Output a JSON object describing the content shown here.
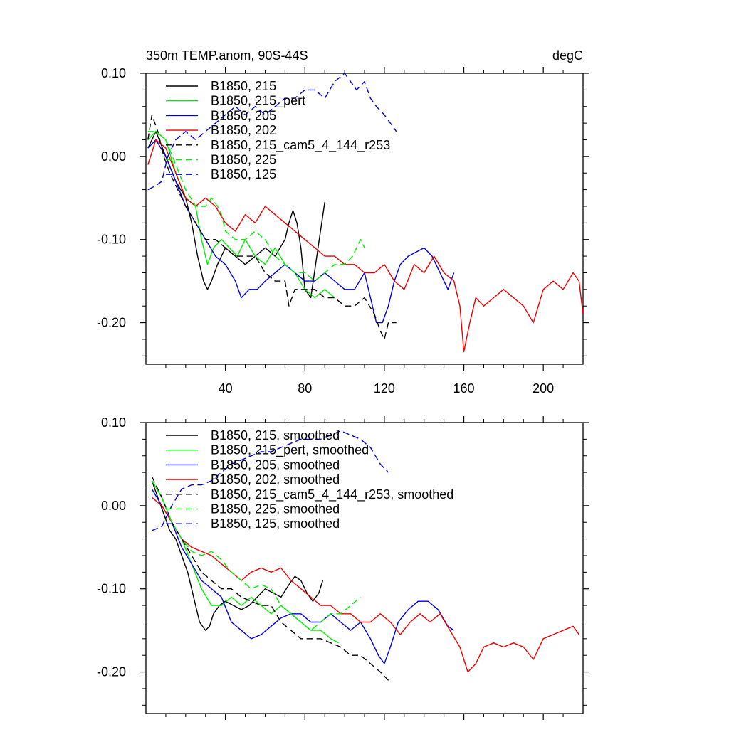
{
  "title_left": "350m TEMP.anom, 90S-44S",
  "title_right": "degC",
  "colors": {
    "black": "#000000",
    "green": "#00ee00",
    "blue": "#0000dd",
    "red": "#ee0000"
  },
  "chart_data": [
    {
      "type": "line",
      "name": "raw",
      "xlim": [
        0,
        220
      ],
      "ylim": [
        -0.25,
        0.1
      ],
      "x_ticks": [
        40,
        80,
        120,
        160,
        200
      ],
      "x_tick_labels": [
        "40",
        "80",
        "120",
        "160",
        "200"
      ],
      "y_ticks": [
        0.1,
        0.0,
        -0.1,
        -0.2
      ],
      "y_tick_labels": [
        "0.10",
        "0.00",
        "-0.10",
        "-0.20"
      ],
      "series": [
        {
          "name": "B1850, 215",
          "color": "#000000",
          "dash": "solid",
          "x": [
            1,
            5,
            10,
            15,
            20,
            23,
            26,
            29,
            31,
            33,
            36,
            40,
            45,
            50,
            55,
            60,
            65,
            70,
            72,
            74,
            76,
            78,
            80,
            83,
            86,
            90
          ],
          "y": [
            0.01,
            0.03,
            0.0,
            -0.03,
            -0.05,
            -0.08,
            -0.12,
            -0.15,
            -0.16,
            -0.15,
            -0.13,
            -0.11,
            -0.12,
            -0.13,
            -0.12,
            -0.11,
            -0.12,
            -0.1,
            -0.08,
            -0.065,
            -0.08,
            -0.11,
            -0.16,
            -0.17,
            -0.12,
            -0.055
          ]
        },
        {
          "name": "B1850, 215_pert",
          "color": "#00ee00",
          "dash": "solid",
          "x": [
            1,
            5,
            10,
            15,
            20,
            25,
            28,
            31,
            34,
            38,
            42,
            46,
            50,
            55,
            60,
            65,
            70,
            75,
            80,
            85,
            90,
            95
          ],
          "y": [
            0.02,
            0.03,
            0.02,
            -0.02,
            -0.05,
            -0.06,
            -0.1,
            -0.13,
            -0.11,
            -0.1,
            -0.11,
            -0.12,
            -0.1,
            -0.12,
            -0.13,
            -0.11,
            -0.13,
            -0.14,
            -0.16,
            -0.17,
            -0.16,
            -0.17
          ]
        },
        {
          "name": "B1850, 205",
          "color": "#0000dd",
          "dash": "solid",
          "x": [
            1,
            5,
            10,
            15,
            20,
            25,
            30,
            35,
            40,
            45,
            48,
            52,
            56,
            60,
            65,
            70,
            75,
            80,
            85,
            90,
            95,
            100,
            105,
            110,
            113,
            116,
            119,
            122,
            125,
            128,
            132,
            136,
            140,
            144,
            148,
            152,
            155
          ],
          "y": [
            0.01,
            0.02,
            0.0,
            -0.03,
            -0.06,
            -0.08,
            -0.1,
            -0.12,
            -0.13,
            -0.15,
            -0.17,
            -0.16,
            -0.16,
            -0.15,
            -0.14,
            -0.13,
            -0.14,
            -0.15,
            -0.15,
            -0.14,
            -0.15,
            -0.16,
            -0.16,
            -0.14,
            -0.17,
            -0.2,
            -0.2,
            -0.18,
            -0.15,
            -0.13,
            -0.12,
            -0.115,
            -0.11,
            -0.12,
            -0.14,
            -0.16,
            -0.14
          ]
        },
        {
          "name": "B1850, 202",
          "color": "#ee0000",
          "dash": "solid",
          "x": [
            1,
            5,
            10,
            15,
            20,
            25,
            30,
            35,
            40,
            45,
            50,
            55,
            60,
            65,
            70,
            75,
            80,
            85,
            90,
            95,
            100,
            105,
            110,
            115,
            120,
            125,
            130,
            135,
            140,
            145,
            150,
            155,
            158,
            160,
            163,
            166,
            170,
            175,
            180,
            185,
            190,
            195,
            200,
            205,
            210,
            215,
            218,
            220
          ],
          "y": [
            -0.01,
            0.02,
            0.01,
            -0.02,
            -0.05,
            -0.06,
            -0.05,
            -0.06,
            -0.08,
            -0.09,
            -0.07,
            -0.08,
            -0.06,
            -0.07,
            -0.08,
            -0.09,
            -0.1,
            -0.11,
            -0.12,
            -0.12,
            -0.13,
            -0.13,
            -0.14,
            -0.14,
            -0.13,
            -0.15,
            -0.16,
            -0.13,
            -0.14,
            -0.12,
            -0.14,
            -0.15,
            -0.18,
            -0.235,
            -0.2,
            -0.17,
            -0.18,
            -0.17,
            -0.16,
            -0.17,
            -0.18,
            -0.2,
            -0.16,
            -0.15,
            -0.16,
            -0.14,
            -0.15,
            -0.19
          ]
        },
        {
          "name": "B1850, 215_cam5_4_144_r253",
          "color": "#000000",
          "dash": "dashed",
          "x": [
            1,
            3,
            6,
            9,
            12,
            16,
            20,
            25,
            30,
            35,
            40,
            45,
            50,
            55,
            60,
            65,
            70,
            72,
            75,
            80,
            85,
            90,
            95,
            100,
            105,
            110,
            115,
            118,
            120,
            122,
            124,
            126
          ],
          "y": [
            0.02,
            0.05,
            0.03,
            0.0,
            -0.02,
            -0.04,
            -0.06,
            -0.08,
            -0.1,
            -0.1,
            -0.11,
            -0.12,
            -0.12,
            -0.12,
            -0.14,
            -0.15,
            -0.15,
            -0.18,
            -0.16,
            -0.16,
            -0.16,
            -0.17,
            -0.17,
            -0.18,
            -0.18,
            -0.17,
            -0.19,
            -0.21,
            -0.22,
            -0.2,
            -0.2,
            -0.2
          ]
        },
        {
          "name": "B1850, 225",
          "color": "#00ee00",
          "dash": "dashed",
          "x": [
            1,
            5,
            10,
            15,
            20,
            25,
            30,
            33,
            36,
            38,
            40,
            45,
            50,
            55,
            60,
            65,
            70,
            75,
            80,
            85,
            90,
            95,
            100,
            104,
            108,
            110
          ],
          "y": [
            0.03,
            0.03,
            0.02,
            -0.01,
            -0.04,
            -0.06,
            -0.06,
            -0.05,
            -0.06,
            -0.07,
            -0.09,
            -0.1,
            -0.1,
            -0.09,
            -0.1,
            -0.12,
            -0.13,
            -0.14,
            -0.14,
            -0.15,
            -0.14,
            -0.13,
            -0.13,
            -0.12,
            -0.1,
            -0.11
          ]
        },
        {
          "name": "B1850, 125",
          "color": "#0000dd",
          "dash": "dashed",
          "x": [
            1,
            5,
            8,
            11,
            15,
            20,
            25,
            30,
            35,
            40,
            45,
            50,
            55,
            60,
            65,
            70,
            75,
            80,
            85,
            90,
            95,
            100,
            103,
            106,
            110,
            113,
            116,
            120,
            123,
            126
          ],
          "y": [
            -0.04,
            -0.035,
            -0.03,
            0.0,
            0.02,
            0.03,
            0.02,
            0.03,
            0.04,
            0.05,
            0.06,
            0.05,
            0.06,
            0.05,
            0.06,
            0.07,
            0.07,
            0.08,
            0.08,
            0.07,
            0.09,
            0.1,
            0.09,
            0.08,
            0.09,
            0.07,
            0.06,
            0.05,
            0.04,
            0.03
          ]
        }
      ]
    },
    {
      "type": "line",
      "name": "smoothed",
      "xlim": [
        0,
        220
      ],
      "ylim": [
        -0.25,
        0.1
      ],
      "x_ticks": [
        40,
        80,
        120,
        160,
        200
      ],
      "x_tick_labels": [],
      "y_ticks": [
        0.1,
        0.0,
        -0.1,
        -0.2
      ],
      "y_tick_labels": [
        "0.10",
        "0.00",
        "-0.10",
        "-0.20"
      ],
      "series": [
        {
          "name": "B1850, 215, smoothed",
          "color": "#000000",
          "dash": "solid",
          "x": [
            3,
            6,
            9,
            12,
            15,
            18,
            21,
            24,
            27,
            30,
            32,
            34,
            37,
            40,
            44,
            48,
            52,
            56,
            60,
            64,
            68,
            72,
            75,
            78,
            81,
            84,
            87,
            89
          ],
          "y": [
            0.03,
            0.01,
            -0.01,
            -0.03,
            -0.04,
            -0.06,
            -0.08,
            -0.11,
            -0.14,
            -0.15,
            -0.145,
            -0.13,
            -0.12,
            -0.115,
            -0.12,
            -0.125,
            -0.12,
            -0.11,
            -0.1,
            -0.105,
            -0.11,
            -0.095,
            -0.085,
            -0.09,
            -0.105,
            -0.115,
            -0.105,
            -0.09
          ]
        },
        {
          "name": "B1850, 215_pert, smoothed",
          "color": "#00ee00",
          "dash": "solid",
          "x": [
            3,
            8,
            13,
            18,
            23,
            28,
            33,
            38,
            43,
            48,
            53,
            58,
            63,
            68,
            73,
            78,
            83,
            88,
            93,
            97
          ],
          "y": [
            0.03,
            0.01,
            -0.02,
            -0.04,
            -0.07,
            -0.1,
            -0.12,
            -0.12,
            -0.11,
            -0.12,
            -0.11,
            -0.12,
            -0.13,
            -0.12,
            -0.13,
            -0.14,
            -0.15,
            -0.15,
            -0.16,
            -0.165
          ]
        },
        {
          "name": "B1850, 205, smoothed",
          "color": "#0000dd",
          "dash": "solid",
          "x": [
            3,
            8,
            13,
            18,
            23,
            28,
            33,
            38,
            43,
            48,
            53,
            58,
            63,
            68,
            73,
            78,
            83,
            88,
            93,
            98,
            103,
            108,
            113,
            117,
            120,
            123,
            127,
            132,
            137,
            142,
            147,
            152,
            155
          ],
          "y": [
            0.02,
            0.0,
            -0.02,
            -0.05,
            -0.07,
            -0.09,
            -0.1,
            -0.11,
            -0.14,
            -0.15,
            -0.16,
            -0.155,
            -0.145,
            -0.135,
            -0.13,
            -0.13,
            -0.14,
            -0.14,
            -0.13,
            -0.14,
            -0.15,
            -0.14,
            -0.16,
            -0.18,
            -0.19,
            -0.17,
            -0.14,
            -0.125,
            -0.115,
            -0.115,
            -0.125,
            -0.145,
            -0.15
          ]
        },
        {
          "name": "B1850, 202, smoothed",
          "color": "#ee0000",
          "dash": "solid",
          "x": [
            3,
            8,
            13,
            18,
            23,
            28,
            33,
            38,
            43,
            48,
            53,
            58,
            63,
            68,
            73,
            78,
            83,
            88,
            93,
            98,
            103,
            108,
            113,
            118,
            123,
            128,
            133,
            138,
            143,
            148,
            153,
            158,
            162,
            166,
            170,
            175,
            180,
            185,
            190,
            195,
            200,
            205,
            210,
            215,
            218
          ],
          "y": [
            0.01,
            0.0,
            -0.02,
            -0.04,
            -0.05,
            -0.055,
            -0.06,
            -0.07,
            -0.08,
            -0.09,
            -0.08,
            -0.075,
            -0.08,
            -0.075,
            -0.09,
            -0.1,
            -0.11,
            -0.12,
            -0.12,
            -0.13,
            -0.13,
            -0.14,
            -0.14,
            -0.13,
            -0.14,
            -0.155,
            -0.14,
            -0.13,
            -0.14,
            -0.13,
            -0.15,
            -0.17,
            -0.2,
            -0.19,
            -0.17,
            -0.165,
            -0.17,
            -0.165,
            -0.17,
            -0.185,
            -0.16,
            -0.155,
            -0.15,
            -0.145,
            -0.155
          ]
        },
        {
          "name": "B1850, 215_cam5_4_144_r253, smoothed",
          "color": "#000000",
          "dash": "dashed",
          "x": [
            3,
            8,
            13,
            18,
            23,
            28,
            33,
            38,
            43,
            48,
            53,
            58,
            63,
            68,
            73,
            78,
            83,
            88,
            93,
            98,
            103,
            108,
            113,
            118,
            122
          ],
          "y": [
            0.035,
            0.01,
            -0.02,
            -0.04,
            -0.06,
            -0.08,
            -0.09,
            -0.1,
            -0.1,
            -0.11,
            -0.115,
            -0.12,
            -0.12,
            -0.14,
            -0.15,
            -0.16,
            -0.16,
            -0.16,
            -0.165,
            -0.17,
            -0.18,
            -0.18,
            -0.19,
            -0.2,
            -0.21
          ]
        },
        {
          "name": "B1850, 225, smoothed",
          "color": "#00ee00",
          "dash": "dashed",
          "x": [
            3,
            8,
            13,
            18,
            23,
            28,
            33,
            38,
            43,
            48,
            53,
            58,
            63,
            68,
            73,
            78,
            83,
            88,
            93,
            98,
            103,
            108
          ],
          "y": [
            0.03,
            0.01,
            -0.02,
            -0.04,
            -0.055,
            -0.06,
            -0.055,
            -0.065,
            -0.08,
            -0.09,
            -0.1,
            -0.095,
            -0.1,
            -0.12,
            -0.13,
            -0.14,
            -0.15,
            -0.14,
            -0.13,
            -0.13,
            -0.12,
            -0.11
          ]
        },
        {
          "name": "B1850, 125, smoothed",
          "color": "#0000dd",
          "dash": "dashed",
          "x": [
            3,
            8,
            13,
            18,
            23,
            28,
            33,
            38,
            43,
            48,
            53,
            58,
            63,
            68,
            73,
            78,
            83,
            88,
            93,
            98,
            103,
            108,
            113,
            118,
            122
          ],
          "y": [
            -0.03,
            -0.025,
            0.0,
            0.02,
            0.025,
            0.025,
            0.03,
            0.04,
            0.05,
            0.055,
            0.06,
            0.065,
            0.065,
            0.07,
            0.075,
            0.08,
            0.08,
            0.08,
            0.085,
            0.09,
            0.085,
            0.08,
            0.07,
            0.05,
            0.04
          ]
        }
      ]
    }
  ]
}
